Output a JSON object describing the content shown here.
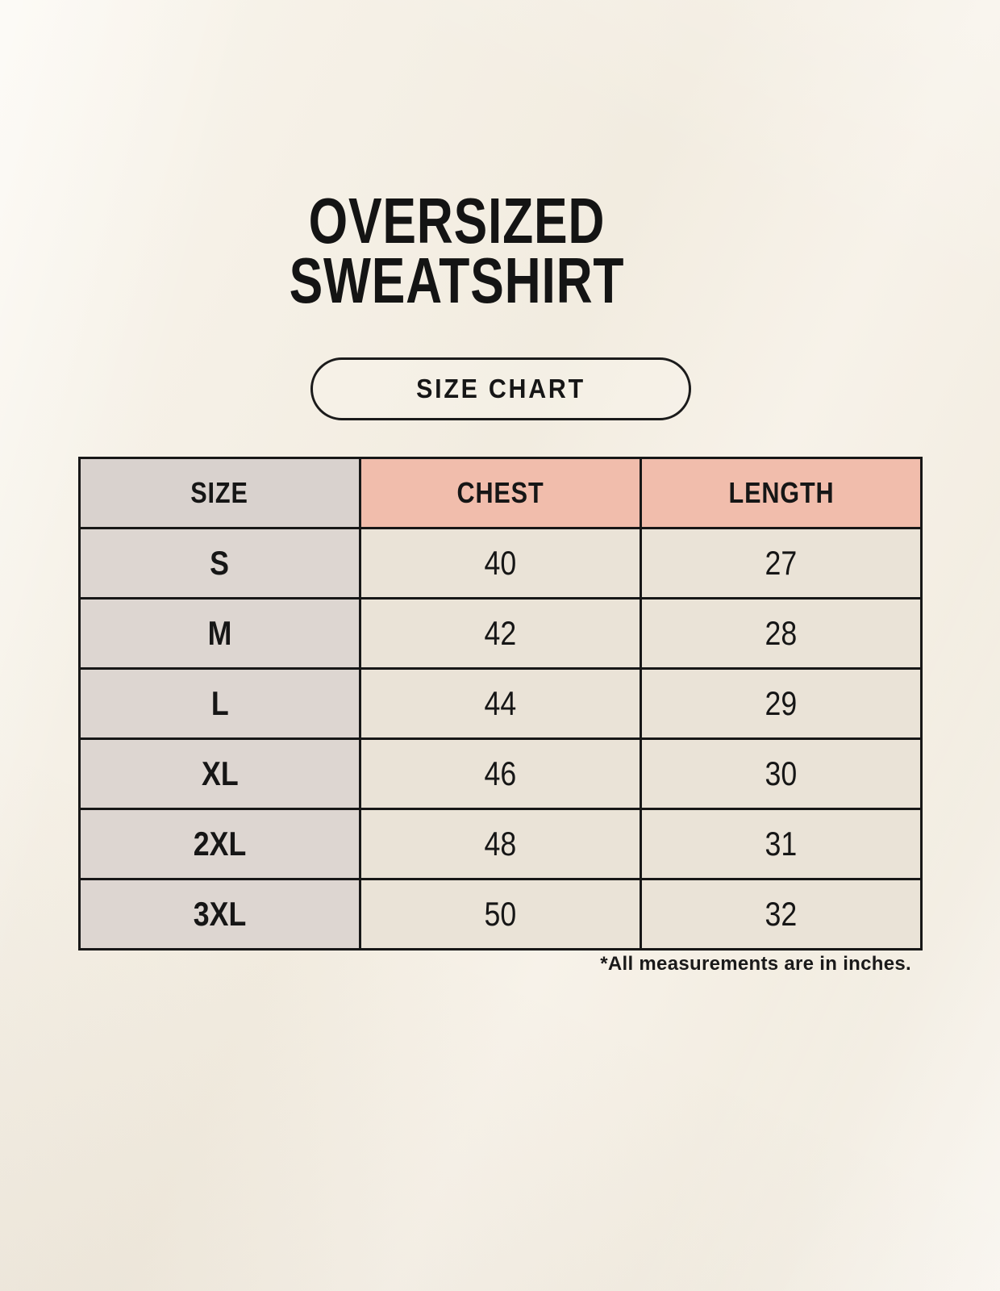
{
  "title": {
    "line1": "OVERSIZED",
    "line2": "SWEATSHIRT"
  },
  "badge": {
    "label": "SIZE CHART"
  },
  "footnote": "*All measurements are in inches.",
  "chart_data": {
    "type": "table",
    "title": "OVERSIZED SWEATSHIRT",
    "subtitle": "SIZE CHART",
    "columns": [
      "SIZE",
      "CHEST",
      "LENGTH"
    ],
    "rows": [
      [
        "S",
        40,
        27
      ],
      [
        "M",
        42,
        28
      ],
      [
        "L",
        44,
        29
      ],
      [
        "XL",
        46,
        30
      ],
      [
        "2XL",
        48,
        31
      ],
      [
        "3XL",
        50,
        32
      ]
    ],
    "note": "*All measurements are in inches.",
    "units": "inches"
  },
  "colors": {
    "background": "#f5f0e6",
    "header_size_bg": "#d9d2ce",
    "header_accent_bg": "#f1bdac",
    "row_label_bg": "#ddd6d1",
    "cell_bg": "#eae3d7",
    "border": "#171717",
    "text": "#141414"
  }
}
